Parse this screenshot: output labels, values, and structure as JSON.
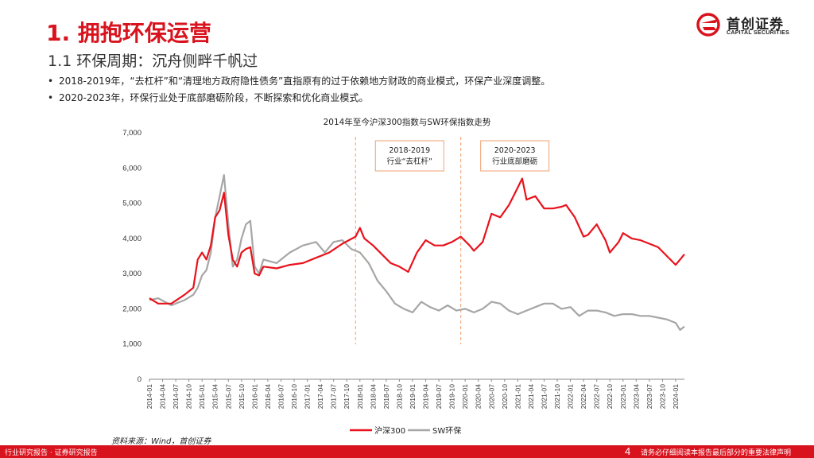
{
  "header": {
    "title": "1. 拥抱环保运营",
    "subtitle": "1.1 环保周期：沉舟侧畔千帆过",
    "bullets": [
      "2018-2019年，“去杠杆”和“清理地方政府隐性债务”直指原有的过于依赖地方财政的商业模式，环保产业深度调整。",
      "2020-2023年，环保行业处于底部磨砺阶段，不断探索和优化商业模式。"
    ]
  },
  "logo": {
    "name_cn": "首创证券",
    "name_en": "CAPITAL SECURITIES"
  },
  "colors": {
    "brand_red": "#d9131e",
    "series_red": "#e8121c",
    "series_gray": "#a6a6a6",
    "annotation_orange": "#f0a070"
  },
  "chart_data": {
    "type": "line",
    "title": "2014年至今沪深300指数与SW环保指数走势",
    "ylim": [
      0,
      7000
    ],
    "yticks": [
      "0",
      "1,000",
      "2,000",
      "3,000",
      "4,000",
      "5,000",
      "6,000",
      "7,000"
    ],
    "ytick_values": [
      0,
      1000,
      2000,
      3000,
      4000,
      5000,
      6000,
      7000
    ],
    "x_start": "2014-01",
    "x_end": "2024-03",
    "xticks": [
      "2014-01",
      "2014-04",
      "2014-07",
      "2014-10",
      "2015-01",
      "2015-04",
      "2015-07",
      "2015-10",
      "2016-01",
      "2016-04",
      "2016-07",
      "2016-10",
      "2017-01",
      "2017-04",
      "2017-07",
      "2017-10",
      "2018-01",
      "2018-04",
      "2018-07",
      "2018-10",
      "2019-01",
      "2019-04",
      "2019-07",
      "2019-10",
      "2020-01",
      "2020-04",
      "2020-07",
      "2020-10",
      "2021-01",
      "2021-04",
      "2021-07",
      "2021-10",
      "2022-01",
      "2022-04",
      "2022-07",
      "2022-10",
      "2023-01",
      "2023-04",
      "2023-07",
      "2023-10",
      "2024-01"
    ],
    "annotations": [
      {
        "label_line1": "2018-2019",
        "label_line2": "行业“去杠杆”",
        "divider_date": "2017-12"
      },
      {
        "label_line1": "2020-2023",
        "label_line2": "行业底部磨砺",
        "divider_date": "2019-12"
      }
    ],
    "series": [
      {
        "name": "沪深300",
        "color": "#e8121c",
        "points": [
          [
            "2014-01",
            2300
          ],
          [
            "2014-03",
            2150
          ],
          [
            "2014-06",
            2150
          ],
          [
            "2014-09",
            2400
          ],
          [
            "2014-11",
            2600
          ],
          [
            "2014-12",
            3400
          ],
          [
            "2015-01",
            3600
          ],
          [
            "2015-02",
            3400
          ],
          [
            "2015-03",
            3800
          ],
          [
            "2015-04",
            4600
          ],
          [
            "2015-05",
            4800
          ],
          [
            "2015-06",
            5300
          ],
          [
            "2015-07",
            4100
          ],
          [
            "2015-08",
            3400
          ],
          [
            "2015-09",
            3200
          ],
          [
            "2015-10",
            3600
          ],
          [
            "2015-11",
            3700
          ],
          [
            "2015-12",
            3750
          ],
          [
            "2016-01",
            3000
          ],
          [
            "2016-02",
            2950
          ],
          [
            "2016-03",
            3200
          ],
          [
            "2016-06",
            3150
          ],
          [
            "2016-09",
            3250
          ],
          [
            "2016-12",
            3300
          ],
          [
            "2017-03",
            3450
          ],
          [
            "2017-06",
            3600
          ],
          [
            "2017-09",
            3850
          ],
          [
            "2017-12",
            4050
          ],
          [
            "2018-01",
            4300
          ],
          [
            "2018-02",
            4000
          ],
          [
            "2018-04",
            3800
          ],
          [
            "2018-06",
            3550
          ],
          [
            "2018-08",
            3300
          ],
          [
            "2018-10",
            3200
          ],
          [
            "2018-12",
            3050
          ],
          [
            "2019-02",
            3600
          ],
          [
            "2019-04",
            3950
          ],
          [
            "2019-06",
            3800
          ],
          [
            "2019-08",
            3800
          ],
          [
            "2019-10",
            3900
          ],
          [
            "2019-12",
            4050
          ],
          [
            "2020-02",
            3800
          ],
          [
            "2020-03",
            3650
          ],
          [
            "2020-05",
            3900
          ],
          [
            "2020-07",
            4700
          ],
          [
            "2020-09",
            4600
          ],
          [
            "2020-11",
            4950
          ],
          [
            "2020-12",
            5200
          ],
          [
            "2021-02",
            5700
          ],
          [
            "2021-03",
            5100
          ],
          [
            "2021-05",
            5200
          ],
          [
            "2021-07",
            4850
          ],
          [
            "2021-09",
            4850
          ],
          [
            "2021-11",
            4900
          ],
          [
            "2021-12",
            4950
          ],
          [
            "2022-02",
            4600
          ],
          [
            "2022-04",
            4050
          ],
          [
            "2022-05",
            4100
          ],
          [
            "2022-07",
            4400
          ],
          [
            "2022-09",
            3950
          ],
          [
            "2022-10",
            3600
          ],
          [
            "2022-12",
            3900
          ],
          [
            "2023-01",
            4150
          ],
          [
            "2023-03",
            4000
          ],
          [
            "2023-05",
            3950
          ],
          [
            "2023-07",
            3850
          ],
          [
            "2023-09",
            3750
          ],
          [
            "2023-11",
            3500
          ],
          [
            "2024-01",
            3250
          ],
          [
            "2024-02",
            3400
          ],
          [
            "2024-03",
            3550
          ]
        ]
      },
      {
        "name": "SW环保",
        "color": "#a6a6a6",
        "points": [
          [
            "2014-01",
            2250
          ],
          [
            "2014-03",
            2300
          ],
          [
            "2014-06",
            2100
          ],
          [
            "2014-09",
            2250
          ],
          [
            "2014-11",
            2400
          ],
          [
            "2014-12",
            2600
          ],
          [
            "2015-01",
            2950
          ],
          [
            "2015-02",
            3100
          ],
          [
            "2015-03",
            3600
          ],
          [
            "2015-04",
            4600
          ],
          [
            "2015-05",
            5200
          ],
          [
            "2015-06",
            5800
          ],
          [
            "2015-07",
            4400
          ],
          [
            "2015-08",
            3200
          ],
          [
            "2015-09",
            3400
          ],
          [
            "2015-10",
            4000
          ],
          [
            "2015-11",
            4400
          ],
          [
            "2015-12",
            4500
          ],
          [
            "2016-01",
            3200
          ],
          [
            "2016-02",
            3000
          ],
          [
            "2016-03",
            3400
          ],
          [
            "2016-06",
            3300
          ],
          [
            "2016-09",
            3600
          ],
          [
            "2016-12",
            3800
          ],
          [
            "2017-03",
            3900
          ],
          [
            "2017-05",
            3600
          ],
          [
            "2017-07",
            3900
          ],
          [
            "2017-09",
            3950
          ],
          [
            "2017-11",
            3700
          ],
          [
            "2018-01",
            3600
          ],
          [
            "2018-03",
            3300
          ],
          [
            "2018-05",
            2800
          ],
          [
            "2018-07",
            2500
          ],
          [
            "2018-09",
            2150
          ],
          [
            "2018-11",
            2000
          ],
          [
            "2019-01",
            1900
          ],
          [
            "2019-03",
            2200
          ],
          [
            "2019-05",
            2050
          ],
          [
            "2019-07",
            1950
          ],
          [
            "2019-09",
            2100
          ],
          [
            "2019-11",
            1950
          ],
          [
            "2020-01",
            2000
          ],
          [
            "2020-03",
            1900
          ],
          [
            "2020-05",
            2000
          ],
          [
            "2020-07",
            2200
          ],
          [
            "2020-09",
            2150
          ],
          [
            "2020-11",
            1950
          ],
          [
            "2021-01",
            1850
          ],
          [
            "2021-03",
            1950
          ],
          [
            "2021-05",
            2050
          ],
          [
            "2021-07",
            2150
          ],
          [
            "2021-09",
            2150
          ],
          [
            "2021-11",
            2000
          ],
          [
            "2022-01",
            2050
          ],
          [
            "2022-03",
            1800
          ],
          [
            "2022-05",
            1950
          ],
          [
            "2022-07",
            1950
          ],
          [
            "2022-09",
            1900
          ],
          [
            "2022-11",
            1800
          ],
          [
            "2023-01",
            1850
          ],
          [
            "2023-03",
            1850
          ],
          [
            "2023-05",
            1800
          ],
          [
            "2023-07",
            1800
          ],
          [
            "2023-09",
            1750
          ],
          [
            "2023-11",
            1700
          ],
          [
            "2024-01",
            1600
          ],
          [
            "2024-02",
            1400
          ],
          [
            "2024-03",
            1500
          ]
        ]
      }
    ]
  },
  "source": "资料来源：Wind，首创证券",
  "footer": {
    "left": "行业研究报告 · 证券研究报告",
    "page": "4",
    "right": "请务必仔细阅读本报告最后部分的重要法律声明"
  }
}
